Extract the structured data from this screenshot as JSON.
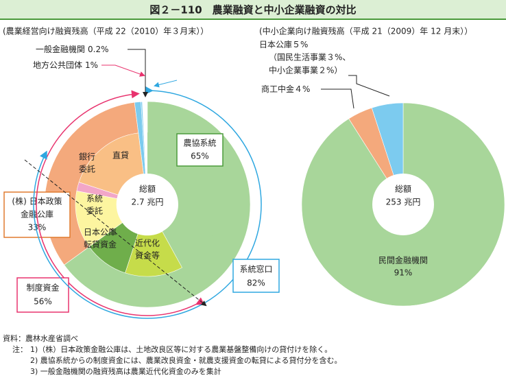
{
  "header": {
    "title": "図２－110　農業融資と中小企業融資の対比"
  },
  "chart_data": [
    {
      "type": "nested-pie",
      "title": "(農業経営向け融資残高（平成 22（2010）年３月末））",
      "center_title": "総額",
      "center_value": "2.7 兆円",
      "outer": {
        "categories": [
          [
            "農協系統"
          ],
          [
            "(株) 日本政策",
            "金融公庫"
          ],
          [
            "地方公共団体"
          ],
          [
            "一般金融機関"
          ]
        ],
        "values": [
          65,
          33,
          1,
          0.2
        ],
        "value_labels": [
          "65%",
          "33%",
          "1%",
          "0.2%"
        ],
        "colors": [
          "#a8d69a",
          "#f4a97c",
          "#7ccbef",
          "#7ccbef"
        ]
      },
      "inner": {
        "categories": [
          null,
          [
            "近代化",
            "資金等"
          ],
          [
            "日本公庫",
            "転貸資金"
          ],
          [
            "系統",
            "委託"
          ],
          [
            "銀行",
            "委託"
          ],
          [
            "直貸"
          ]
        ],
        "values": [
          42,
          13,
          10,
          13,
          2,
          18
        ],
        "colors": [
          "#a8d69a",
          "#c6dc4a",
          "#6fae4b",
          "#fdf5a0",
          "#f2a6c8",
          "#f9bf85"
        ]
      },
      "groups": [
        {
          "name": "制度資金",
          "value": 56,
          "value_label": "56%",
          "color": "#e8336e"
        },
        {
          "name": "系統窓口",
          "value": 82,
          "value_label": "82%",
          "color": "#2ea7e0"
        }
      ]
    },
    {
      "type": "pie",
      "title": "(中小企業向け融資残高（平成 21（2009）年 12 月末））",
      "center_title": "総額",
      "center_value": "253 兆円",
      "categories": [
        "民間金融機関",
        "商工中金",
        "日本公庫"
      ],
      "values": [
        91,
        4,
        5
      ],
      "value_labels": [
        "91%",
        "４%",
        "５%"
      ],
      "sub_labels": [
        "（国民生活事業３%、",
        "中小企業事業２%）"
      ],
      "colors": [
        "#a8d69a",
        "#f4a97c",
        "#7ccbef"
      ]
    }
  ],
  "notes": {
    "source": "資料：農林水産省調べ",
    "label": "注：",
    "items": [
      "1)（株）日本政策金融公庫は、土地改良区等に対する農業基盤整備向けの貸付けを除く。",
      "2) 農協系統からの制度資金には、農業改良資金・就農支援資金の転貸による貸付分を含む。",
      "3) 一般金融機関の融資残高は農業近代化資金のみを集計"
    ]
  }
}
